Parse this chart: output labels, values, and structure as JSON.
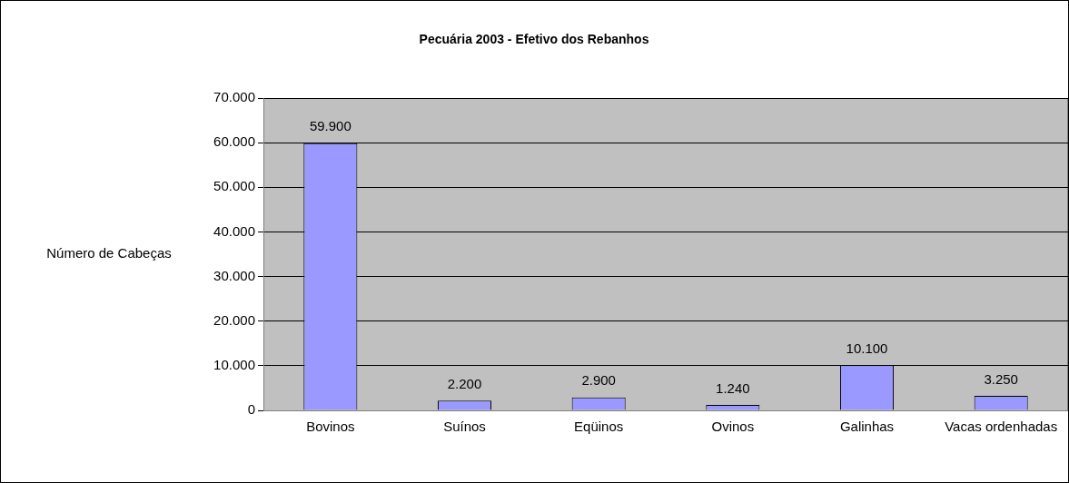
{
  "chart_data": {
    "type": "bar",
    "title": "Pecuária 2003 - Efetivo dos Rebanhos",
    "ylabel": "Número de Cabeças",
    "categories": [
      "Bovinos",
      "Suínos",
      "Eqüinos",
      "Ovinos",
      "Galinhas",
      "Vacas ordenhadas"
    ],
    "values": [
      59900,
      2200,
      2900,
      1240,
      10100,
      3250
    ],
    "value_labels": [
      "59.900",
      "2.200",
      "2.900",
      "1.240",
      "10.100",
      "3.250"
    ],
    "color": "#9999ff",
    "ylim": [
      0,
      70000
    ],
    "yticks": [
      {
        "value": 0,
        "label": "0"
      },
      {
        "value": 10000,
        "label": "10.000"
      },
      {
        "value": 20000,
        "label": "20.000"
      },
      {
        "value": 30000,
        "label": "30.000"
      },
      {
        "value": 40000,
        "label": "40.000"
      },
      {
        "value": 50000,
        "label": "50.000"
      },
      {
        "value": 60000,
        "label": "60.000"
      },
      {
        "value": 70000,
        "label": "70.000"
      }
    ],
    "grid": "y",
    "legend": false
  }
}
